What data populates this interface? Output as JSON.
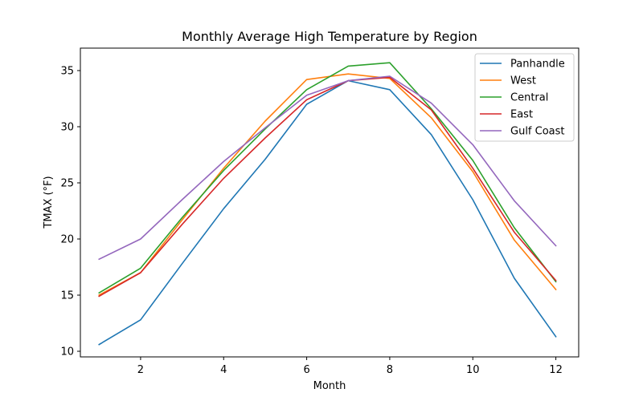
{
  "chart_data": {
    "type": "line",
    "title": "Monthly Average High Temperature by Region",
    "xlabel": "Month",
    "ylabel": "TMAX (°F)",
    "xlim": [
      0.55,
      12.55
    ],
    "ylim": [
      9.5,
      37.0
    ],
    "xticks": [
      2,
      4,
      6,
      8,
      10,
      12
    ],
    "yticks": [
      10,
      15,
      20,
      25,
      30,
      35
    ],
    "grid": false,
    "legend_position": "top-right",
    "x": [
      1,
      2,
      3,
      4,
      5,
      6,
      7,
      8,
      9,
      10,
      11,
      12
    ],
    "series": [
      {
        "name": "Panhandle",
        "color": "#1f77b4",
        "values": [
          10.6,
          12.8,
          17.8,
          22.7,
          27.1,
          32.0,
          34.1,
          33.3,
          29.3,
          23.5,
          16.5,
          11.3
        ]
      },
      {
        "name": "West",
        "color": "#ff7f0e",
        "values": [
          15.0,
          17.0,
          21.7,
          26.3,
          30.5,
          34.2,
          34.7,
          34.3,
          30.8,
          26.0,
          19.9,
          15.5
        ]
      },
      {
        "name": "Central",
        "color": "#2ca02c",
        "values": [
          15.2,
          17.4,
          21.9,
          26.1,
          29.8,
          33.3,
          35.4,
          35.7,
          31.6,
          27.0,
          21.0,
          16.2
        ]
      },
      {
        "name": "East",
        "color": "#d62728",
        "values": [
          14.9,
          17.0,
          21.3,
          25.4,
          29.0,
          32.4,
          34.1,
          34.4,
          31.5,
          26.3,
          20.6,
          16.3
        ]
      },
      {
        "name": "Gulf Coast",
        "color": "#9467bd",
        "values": [
          18.2,
          20.0,
          23.5,
          26.9,
          29.9,
          32.8,
          34.1,
          34.5,
          32.1,
          28.4,
          23.4,
          19.4
        ]
      }
    ]
  }
}
